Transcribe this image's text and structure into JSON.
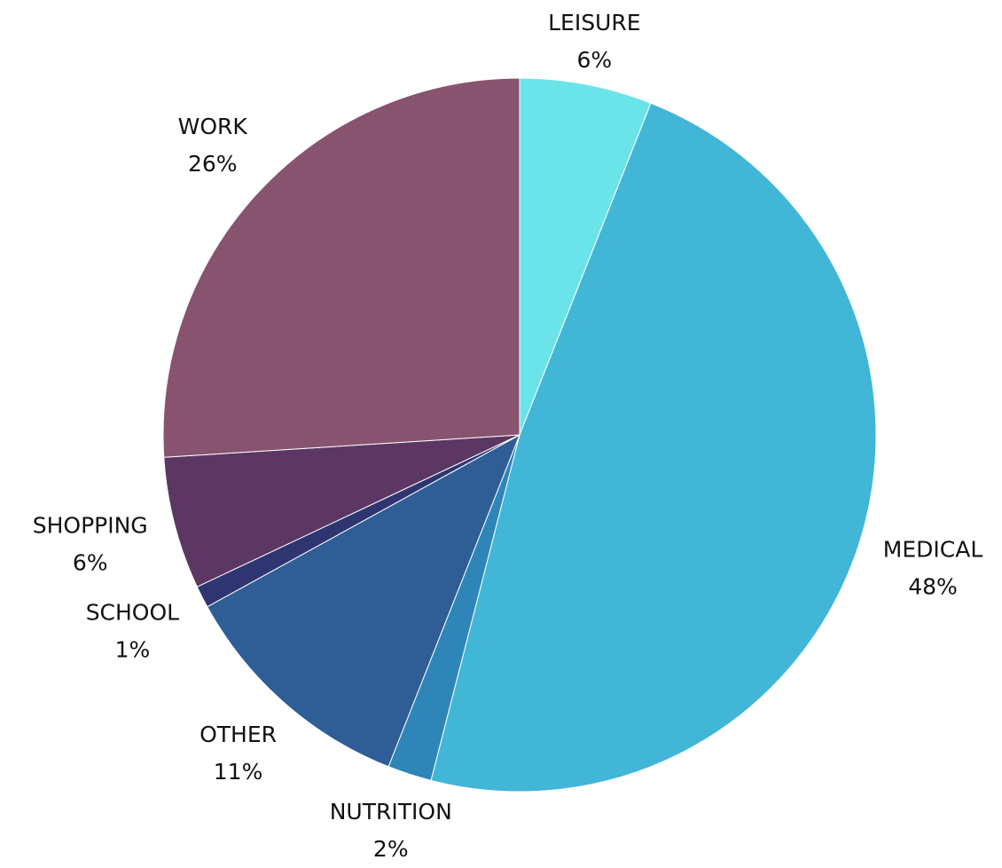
{
  "chart_data": {
    "type": "pie",
    "categories": [
      "LEISURE",
      "MEDICAL",
      "NUTRITION",
      "OTHER",
      "SCHOOL",
      "SHOPPING",
      "WORK"
    ],
    "values": [
      6,
      48,
      2,
      11,
      1,
      6,
      26
    ],
    "value_labels": [
      "6%",
      "48%",
      "2%",
      "11%",
      "1%",
      "6%",
      "26%"
    ],
    "colors": [
      "#6ae4e9",
      "#42b6d6",
      "#2e86b8",
      "#2f5d96",
      "#2e3570",
      "#5c3764",
      "#88536f"
    ]
  }
}
